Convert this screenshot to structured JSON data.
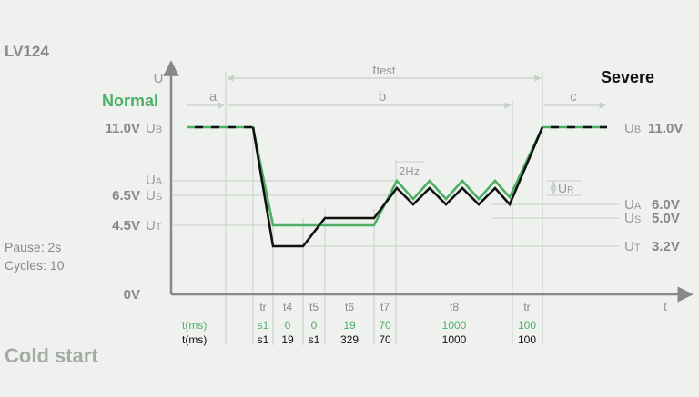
{
  "header": {
    "title": "LV124",
    "normal_label": "Normal",
    "severe_label": "Severe"
  },
  "left_info": {
    "pause": "Pause: 2s",
    "cycles": "Cycles: 10",
    "footer": "Cold start"
  },
  "axes": {
    "y_axis_label": "U",
    "x_axis_label": "t",
    "zero_label": "0V"
  },
  "left_levels": {
    "ub": {
      "value": "11.0V",
      "sym": "U",
      "sub": "B"
    },
    "ua": {
      "sym": "U",
      "sub": "A"
    },
    "us": {
      "value": "6.5V",
      "sym": "U",
      "sub": "S"
    },
    "ut": {
      "value": "4.5V",
      "sym": "U",
      "sub": "T"
    }
  },
  "right_levels": {
    "ub": {
      "sym": "U",
      "sub": "B",
      "value": "11.0V"
    },
    "ua": {
      "sym": "U",
      "sub": "A",
      "value": "6.0V"
    },
    "us": {
      "sym": "U",
      "sub": "S",
      "value": "5.0V"
    },
    "ut": {
      "sym": "U",
      "sub": "T",
      "value": "3.2V"
    }
  },
  "spans": {
    "ttest": {
      "main": "t",
      "sub": "test"
    },
    "a": "a",
    "b": "b",
    "c": "c",
    "freq": "2Hz",
    "ripple": {
      "sym": "U",
      "sub": "R"
    }
  },
  "table": {
    "row_label_normal": "t(ms)",
    "row_label_severe": "t(ms)",
    "headers": [
      "tr",
      "t4",
      "t5",
      "t6",
      "t7",
      "t8",
      "tr"
    ],
    "normal": [
      "s1",
      "0",
      "0",
      "19",
      "70",
      "1000",
      "100"
    ],
    "severe": [
      "s1",
      "19",
      "s1",
      "329",
      "70",
      "1000",
      "100"
    ]
  },
  "colors": {
    "green": "#4caf64",
    "black": "#111111",
    "grid": "#c8cec8",
    "label_gray": "#888888"
  }
}
